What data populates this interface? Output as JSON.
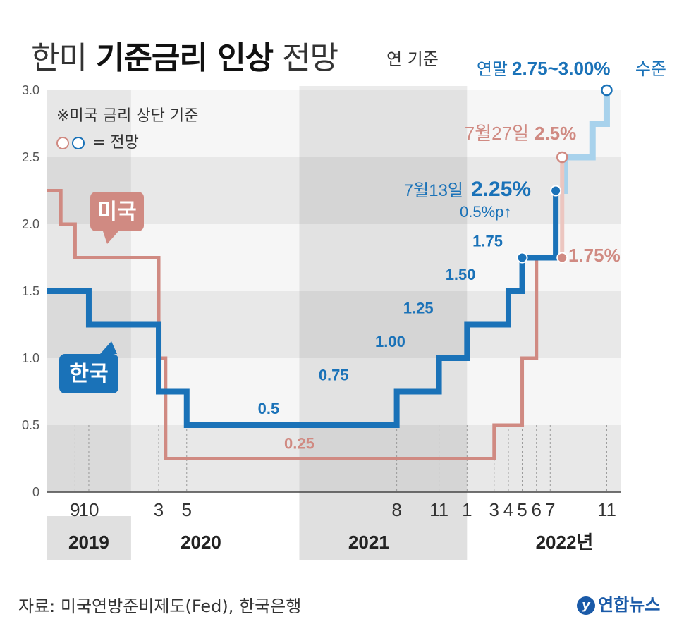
{
  "header": {
    "title_part1": "한미",
    "title_bold": "기준금리 인상",
    "title_part2": "전망",
    "unit_note": "연 기준"
  },
  "notes": {
    "note_us_upper": "※미국 금리 상단 기준",
    "forecast_legend": "= 전망"
  },
  "footer": {
    "source": "자료: 미국연방준비제도(Fed), 한국은행",
    "brand": "연합뉴스"
  },
  "colors": {
    "korea": "#1a72b8",
    "korea_forecast": "#a8d2ec",
    "us": "#d08a82",
    "us_forecast": "#ecc6c0",
    "band_dark": "#e8e8e8",
    "band_light": "#f6f6f6"
  },
  "chart_data": {
    "type": "line",
    "step": true,
    "x_axis": {
      "start": "2019-07",
      "end": "2022-12",
      "tick_labels": [
        {
          "label": "9",
          "date": "2019-09"
        },
        {
          "label": "10",
          "date": "2019-10"
        },
        {
          "label": "3",
          "date": "2020-03"
        },
        {
          "label": "5",
          "date": "2020-05"
        },
        {
          "label": "8",
          "date": "2021-08"
        },
        {
          "label": "11",
          "date": "2021-11"
        },
        {
          "label": "1",
          "date": "2022-01"
        },
        {
          "label": "3",
          "date": "2022-03"
        },
        {
          "label": "4",
          "date": "2022-04"
        },
        {
          "label": "5",
          "date": "2022-05"
        },
        {
          "label": "6",
          "date": "2022-06"
        },
        {
          "label": "7",
          "date": "2022-07"
        },
        {
          "label": "11",
          "date": "2022-11"
        }
      ],
      "year_labels": [
        {
          "label": "2019",
          "date": "2019-10",
          "shaded": true
        },
        {
          "label": "2020",
          "date": "2020-06",
          "shaded": false
        },
        {
          "label": "2021",
          "date": "2021-06",
          "shaded": true
        },
        {
          "label": "2022년",
          "date": "2022-08",
          "shaded": false
        }
      ]
    },
    "y_axis": {
      "range": [
        0,
        3.0
      ],
      "ticks": [
        "0",
        "0.5",
        "1.0",
        "1.5",
        "2.0",
        "2.5",
        "3.0"
      ]
    },
    "series": [
      {
        "name": "한국",
        "points": [
          {
            "date": "2019-07",
            "value": 1.5
          },
          {
            "date": "2019-10",
            "value": 1.25
          },
          {
            "date": "2020-03",
            "value": 0.75
          },
          {
            "date": "2020-05",
            "value": 0.5
          },
          {
            "date": "2021-08",
            "value": 0.75
          },
          {
            "date": "2021-11",
            "value": 1.0
          },
          {
            "date": "2022-01",
            "value": 1.25
          },
          {
            "date": "2022-04",
            "value": 1.5
          },
          {
            "date": "2022-05",
            "value": 1.75
          },
          {
            "date": "2022-07-13",
            "value": 2.25
          }
        ],
        "forecast": [
          {
            "date": "2022-08",
            "value": 2.5
          },
          {
            "date": "2022-10",
            "value": 2.75
          },
          {
            "date": "2022-11",
            "value": 3.0
          }
        ],
        "labels": [
          {
            "text": "0.5",
            "date": "2020-12",
            "value": 0.5
          },
          {
            "text": "0.75",
            "date": "2021-05",
            "value": 0.75
          },
          {
            "text": "1.00",
            "date": "2021-09",
            "value": 1.0
          },
          {
            "text": "1.25",
            "date": "2021-11",
            "value": 1.25
          },
          {
            "text": "1.50",
            "date": "2022-02",
            "value": 1.5
          },
          {
            "text": "1.75",
            "date": "2022-04",
            "value": 1.75
          }
        ]
      },
      {
        "name": "미국",
        "points": [
          {
            "date": "2019-07",
            "value": 2.25
          },
          {
            "date": "2019-08",
            "value": 2.0
          },
          {
            "date": "2019-09",
            "value": 1.75
          },
          {
            "date": "2020-03",
            "value": 1.0
          },
          {
            "date": "2020-03-16",
            "value": 0.25
          },
          {
            "date": "2022-03",
            "value": 0.5
          },
          {
            "date": "2022-05",
            "value": 1.0
          },
          {
            "date": "2022-06",
            "value": 1.75
          }
        ],
        "forecast": [
          {
            "date": "2022-07-27",
            "value": 2.5
          }
        ],
        "labels": [
          {
            "text": "0.25",
            "date": "2021-01",
            "value": 0.25
          }
        ]
      }
    ],
    "annotations": {
      "korea_badge": "한국",
      "us_badge": "미국",
      "korea_jul13_prefix": "7월13일",
      "korea_jul13_value": "2.25%",
      "korea_jul13_change": "0.5%p↑",
      "us_jul27_prefix": "7월27일",
      "us_jul27_value": "2.5%",
      "us_current": "1.75%",
      "year_end_prefix": "연말",
      "year_end_value": "2.75~3.00%",
      "year_end_suffix": "수준"
    }
  }
}
